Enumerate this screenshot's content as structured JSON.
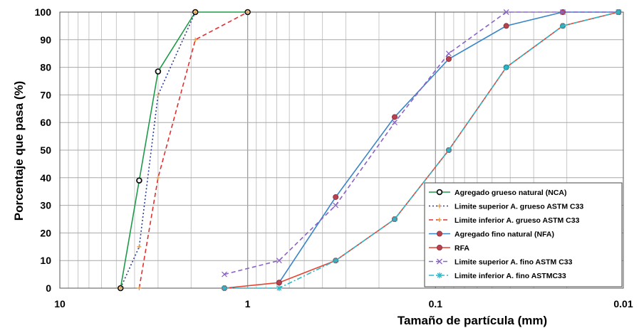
{
  "chart_data": {
    "type": "line",
    "xlabel": "Tamaño de partícula (mm)",
    "ylabel": "Porcentaje que pasa (%)",
    "x_scale": "log",
    "x_reversed": true,
    "xlim": [
      10,
      0.01
    ],
    "ylim": [
      0,
      100
    ],
    "x_ticks": [
      10,
      1,
      0.1,
      0.01
    ],
    "x_tick_labels": [
      "10",
      "1",
      "0.1",
      "0.01"
    ],
    "y_ticks": [
      0,
      10,
      20,
      30,
      40,
      50,
      60,
      70,
      80,
      90,
      100
    ],
    "grid": true,
    "legend_position": "bottom-right",
    "series": [
      {
        "name": "Agregado grueso natural (NCA)",
        "color": "#1f9a4a",
        "dash": "solid",
        "marker": "circle-hollow",
        "x": [
          4.75,
          3.78,
          3.0,
          1.9,
          1.0
        ],
        "y": [
          0,
          39,
          78.5,
          100,
          100
        ]
      },
      {
        "name": "Limite superior A. grueso ASTM C33",
        "color": "#2a3c9e",
        "dash": "dotted",
        "marker": "plus",
        "x": [
          4.75,
          3.78,
          3.0,
          1.9
        ],
        "y": [
          0,
          15,
          70,
          100
        ]
      },
      {
        "name": "Limite inferior A. grueso ASTM C33",
        "color": "#e03030",
        "dash": "dashed",
        "marker": "plus",
        "x": [
          3.78,
          3.0,
          1.9,
          1.0
        ],
        "y": [
          0,
          40,
          90,
          100
        ]
      },
      {
        "name": "Agregado fino natural (NFA)",
        "color": "#3a85c8",
        "dash": "solid",
        "marker": "dot",
        "x": [
          0.68,
          0.34,
          0.165,
          0.085,
          0.042,
          0.021,
          0.0106
        ],
        "y": [
          2,
          33,
          62,
          83,
          95,
          100,
          100
        ]
      },
      {
        "name": "RFA",
        "color": "#e8412f",
        "dash": "solid",
        "marker": "dot",
        "x": [
          1.33,
          0.68,
          0.34,
          0.165,
          0.085,
          0.042,
          0.021,
          0.0106
        ],
        "y": [
          0,
          2,
          10,
          25,
          50,
          80,
          95,
          100
        ]
      },
      {
        "name": "Limite superior A. fino ASTM C33",
        "color": "#8a62c8",
        "dash": "dashed",
        "marker": "x",
        "x": [
          1.33,
          0.68,
          0.34,
          0.165,
          0.085,
          0.042,
          0.021,
          0.0106
        ],
        "y": [
          5,
          10,
          30,
          60,
          85,
          100,
          100,
          100
        ]
      },
      {
        "name": "Limite inferior A. fino ASTMC33",
        "color": "#2eb8c8",
        "dash": "dashdot",
        "marker": "asterisk",
        "x": [
          1.33,
          0.68,
          0.34,
          0.165,
          0.085,
          0.042,
          0.021,
          0.0106
        ],
        "y": [
          0,
          0,
          10,
          25,
          50,
          80,
          95,
          100
        ]
      }
    ]
  }
}
